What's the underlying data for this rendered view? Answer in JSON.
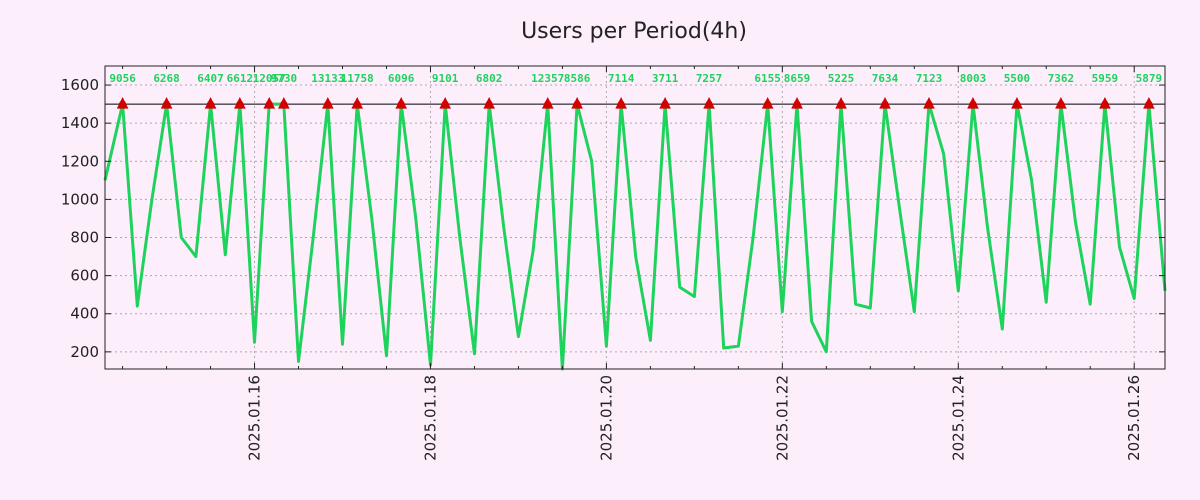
{
  "chart_data": {
    "type": "line",
    "title": "Users per Period(4h)",
    "xlabel": "",
    "ylabel": "",
    "x_unit": "days since 2025.01.14 00:00 (4h periods)",
    "xlim": [
      0.3,
      12.35
    ],
    "ylim": [
      110,
      1700
    ],
    "y_ticks": [
      200,
      400,
      600,
      800,
      1000,
      1200,
      1400,
      1600
    ],
    "x_ticks": [
      {
        "x": 2,
        "label": "2025.01.16"
      },
      {
        "x": 4,
        "label": "2025.01.18"
      },
      {
        "x": 6,
        "label": "2025.01.20"
      },
      {
        "x": 8,
        "label": "2025.01.22"
      },
      {
        "x": 10,
        "label": "2025.01.24"
      },
      {
        "x": 12,
        "label": "2025.01.26"
      }
    ],
    "grid": true,
    "colors": {
      "line": "#1ed35c",
      "marker": "#d40000",
      "reference": "#000000",
      "grid": "#aaaaaa",
      "background": "#fdeefc"
    },
    "reference_line": 1500,
    "series": [
      {
        "name": "Users",
        "x": [
          0.3,
          0.5,
          0.667,
          0.833,
          1.0,
          1.167,
          1.333,
          1.5,
          1.667,
          1.833,
          2.0,
          2.167,
          2.333,
          2.5,
          2.667,
          2.833,
          3.0,
          3.167,
          3.333,
          3.5,
          3.667,
          3.833,
          4.0,
          4.167,
          4.333,
          4.5,
          4.667,
          4.833,
          5.0,
          5.167,
          5.333,
          5.5,
          5.667,
          5.833,
          6.0,
          6.167,
          6.333,
          6.5,
          6.667,
          6.833,
          7.0,
          7.167,
          7.333,
          7.5,
          7.667,
          7.833,
          8.0,
          8.167,
          8.333,
          8.5,
          8.667,
          8.833,
          9.0,
          9.167,
          9.333,
          9.5,
          9.667,
          9.833,
          10.0,
          10.167,
          10.333,
          10.5,
          10.667,
          10.833,
          11.0,
          11.167,
          11.333,
          11.5,
          11.667,
          11.833,
          12.0,
          12.167,
          12.35
        ],
        "values": [
          1100,
          1500,
          440,
          1000,
          1500,
          800,
          700,
          1500,
          710,
          1500,
          250,
          1500,
          1500,
          150,
          800,
          1500,
          240,
          1500,
          900,
          180,
          1500,
          900,
          130,
          1500,
          800,
          190,
          1500,
          850,
          280,
          730,
          1500,
          110,
          1500,
          1200,
          230,
          1500,
          700,
          260,
          1500,
          540,
          490,
          1500,
          220,
          230,
          800,
          1500,
          410,
          1500,
          360,
          200,
          1500,
          450,
          430,
          1500,
          950,
          410,
          1500,
          1240,
          520,
          1500,
          850,
          320,
          1500,
          1100,
          460,
          1500,
          880,
          450,
          1500,
          750,
          480,
          1500,
          520
        ]
      }
    ],
    "peak_annotations": [
      {
        "x": 0.5,
        "label": "9056"
      },
      {
        "x": 1.0,
        "label": "6268"
      },
      {
        "x": 1.5,
        "label": "6407"
      },
      {
        "x": 1.833,
        "label": "6612"
      },
      {
        "x": 2.167,
        "label": "12057"
      },
      {
        "x": 2.333,
        "label": "9730"
      },
      {
        "x": 2.833,
        "label": "13133"
      },
      {
        "x": 3.167,
        "label": "11758"
      },
      {
        "x": 3.667,
        "label": "6096"
      },
      {
        "x": 4.167,
        "label": "9101"
      },
      {
        "x": 4.667,
        "label": "6802"
      },
      {
        "x": 5.333,
        "label": "12357"
      },
      {
        "x": 5.667,
        "label": "8586"
      },
      {
        "x": 6.167,
        "label": "7114"
      },
      {
        "x": 6.667,
        "label": "3711"
      },
      {
        "x": 7.167,
        "label": "7257"
      },
      {
        "x": 7.833,
        "label": "6155"
      },
      {
        "x": 8.167,
        "label": "8659"
      },
      {
        "x": 8.667,
        "label": "5225"
      },
      {
        "x": 9.167,
        "label": "7634"
      },
      {
        "x": 9.667,
        "label": "7123"
      },
      {
        "x": 10.167,
        "label": "8003"
      },
      {
        "x": 10.667,
        "label": "5500"
      },
      {
        "x": 11.167,
        "label": "7362"
      },
      {
        "x": 11.667,
        "label": "5959"
      },
      {
        "x": 12.167,
        "label": "5879"
      }
    ]
  }
}
